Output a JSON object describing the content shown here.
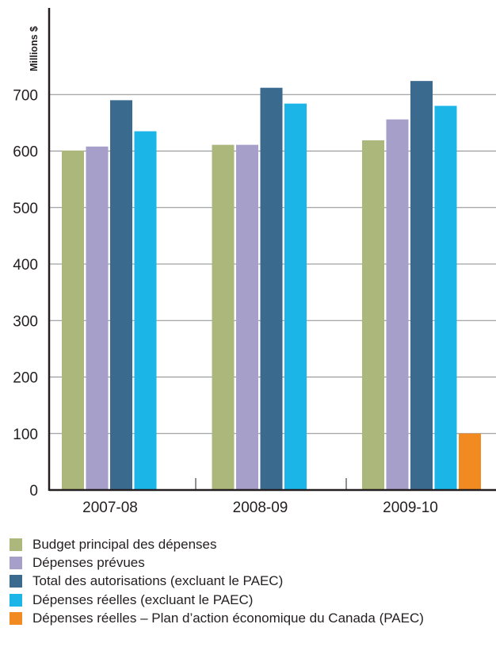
{
  "chart_data": {
    "type": "bar",
    "title": "",
    "xlabel": "",
    "ylabel": "Millions $",
    "ylim": [
      0,
      800
    ],
    "yticks": [
      0,
      100,
      200,
      300,
      400,
      500,
      600,
      700
    ],
    "grid": true,
    "legend_position": "bottom",
    "categories": [
      "2007-08",
      "2008-09",
      "2009-10"
    ],
    "series": [
      {
        "name": "Budget principal des dépenses",
        "color": "#acb77b",
        "values": [
          601,
          611,
          619
        ]
      },
      {
        "name": "Dépenses prévues",
        "color": "#a59fc9",
        "values": [
          608,
          611,
          656
        ]
      },
      {
        "name": "Total des autorisations (excluant le PAEC)",
        "color": "#3b6a8f",
        "values": [
          690,
          712,
          724
        ]
      },
      {
        "name": "Dépenses réelles (excluant le PAEC)",
        "color": "#1bb5e8",
        "values": [
          635,
          684,
          680
        ]
      },
      {
        "name": "Dépenses réelles – Plan d’action économique du Canada (PAEC)",
        "color": "#f28a22",
        "values": [
          null,
          null,
          100
        ]
      }
    ]
  }
}
